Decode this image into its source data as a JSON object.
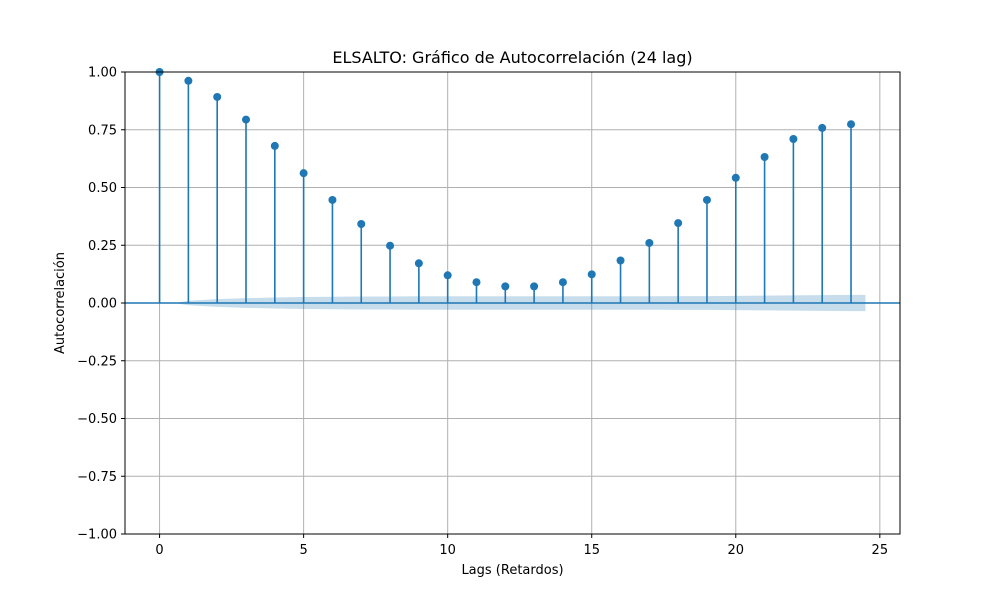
{
  "chart_data": {
    "type": "stem",
    "title": "ELSALTO: Gráfico de Autocorrelación (24 lag)",
    "xlabel": "Lags (Retardos)",
    "ylabel": "Autocorrelación",
    "xlim": [
      -1.2,
      25.7
    ],
    "ylim": [
      -1.0,
      1.0
    ],
    "xticks": [
      0,
      5,
      10,
      15,
      20,
      25
    ],
    "xtick_labels": [
      "0",
      "5",
      "10",
      "15",
      "20",
      "25"
    ],
    "yticks": [
      1.0,
      0.75,
      0.5,
      0.25,
      0.0,
      -0.25,
      -0.5,
      -0.75,
      -1.0
    ],
    "ytick_labels": [
      "1.00",
      "0.75",
      "0.50",
      "0.25",
      "0.00",
      "−0.25",
      "−0.50",
      "−0.75",
      "−1.00"
    ],
    "grid": true,
    "series": [
      {
        "color": "#1f77b4",
        "x": [
          0,
          1,
          2,
          3,
          4,
          5,
          6,
          7,
          8,
          9,
          10,
          11,
          12,
          13,
          14,
          15,
          16,
          17,
          18,
          19,
          20,
          21,
          22,
          23,
          24
        ],
        "values": [
          1.0,
          0.962,
          0.892,
          0.794,
          0.68,
          0.562,
          0.446,
          0.342,
          0.248,
          0.172,
          0.12,
          0.09,
          0.072,
          0.072,
          0.09,
          0.124,
          0.184,
          0.26,
          0.346,
          0.446,
          0.542,
          0.632,
          0.71,
          0.758,
          0.774
        ]
      }
    ],
    "confidence_band": {
      "color": "#1f77b4",
      "x": [
        0.5,
        1,
        2,
        3,
        4,
        5,
        6,
        7,
        8,
        9,
        10,
        11,
        12,
        13,
        14,
        15,
        16,
        17,
        18,
        19,
        20,
        21,
        22,
        23,
        24,
        24.5
      ],
      "upper": [
        0.0,
        0.01,
        0.017,
        0.021,
        0.024,
        0.026,
        0.027,
        0.028,
        0.028,
        0.029,
        0.029,
        0.029,
        0.029,
        0.029,
        0.029,
        0.029,
        0.029,
        0.029,
        0.03,
        0.03,
        0.031,
        0.032,
        0.033,
        0.034,
        0.035,
        0.035
      ]
    }
  }
}
